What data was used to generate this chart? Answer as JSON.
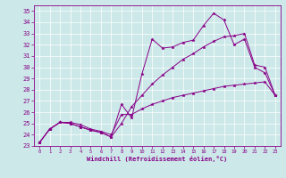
{
  "xlabel": "Windchill (Refroidissement éolien,°C)",
  "xlim": [
    -0.5,
    23.5
  ],
  "ylim": [
    23,
    35.5
  ],
  "ytick_vals": [
    23,
    24,
    25,
    26,
    27,
    28,
    29,
    30,
    31,
    32,
    33,
    34,
    35
  ],
  "xtick_vals": [
    0,
    1,
    2,
    3,
    4,
    5,
    6,
    7,
    8,
    9,
    10,
    11,
    12,
    13,
    14,
    15,
    16,
    17,
    18,
    19,
    20,
    21,
    22,
    23
  ],
  "bg_color": "#cce8e8",
  "line_color": "#880088",
  "line1_x": [
    0,
    1,
    2,
    3,
    4,
    5,
    6,
    7,
    8,
    9,
    10,
    11,
    12,
    13,
    14,
    15,
    16,
    17,
    18,
    19,
    20,
    21,
    22,
    23
  ],
  "line1_y": [
    23.3,
    24.5,
    25.1,
    25.1,
    24.9,
    24.5,
    24.3,
    24.0,
    25.8,
    25.8,
    26.3,
    26.7,
    27.0,
    27.3,
    27.5,
    27.7,
    27.9,
    28.1,
    28.3,
    28.4,
    28.5,
    28.6,
    28.7,
    27.5
  ],
  "line2_x": [
    0,
    1,
    2,
    3,
    4,
    5,
    6,
    7,
    8,
    9,
    10,
    11,
    12,
    13,
    14,
    15,
    16,
    17,
    18,
    19,
    20,
    21,
    22,
    23
  ],
  "line2_y": [
    23.3,
    24.5,
    25.1,
    25.0,
    24.7,
    24.4,
    24.2,
    23.8,
    26.7,
    25.5,
    29.4,
    32.5,
    31.7,
    31.8,
    32.2,
    32.4,
    33.7,
    34.8,
    34.2,
    32.0,
    32.5,
    30.0,
    29.5,
    27.5
  ],
  "line3_x": [
    0,
    1,
    2,
    3,
    4,
    5,
    6,
    7,
    8,
    9,
    10,
    11,
    12,
    13,
    14,
    15,
    16,
    17,
    18,
    19,
    20,
    21,
    22,
    23
  ],
  "line3_y": [
    23.3,
    24.5,
    25.1,
    25.0,
    24.7,
    24.4,
    24.2,
    23.8,
    25.0,
    26.5,
    27.5,
    28.5,
    29.3,
    30.0,
    30.7,
    31.2,
    31.8,
    32.3,
    32.7,
    32.8,
    33.0,
    30.2,
    30.0,
    27.5
  ]
}
